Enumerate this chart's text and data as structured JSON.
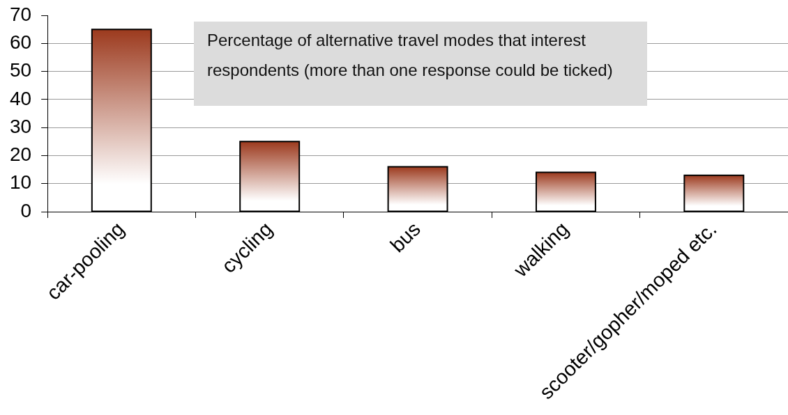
{
  "chart_data": {
    "type": "bar",
    "categories": [
      "car-pooling",
      "cycling",
      "bus",
      "walking",
      "scooter/gopher/moped etc."
    ],
    "values": [
      65,
      25,
      16,
      14,
      13
    ],
    "color": "#9c3a1e",
    "ylim": [
      0,
      70
    ],
    "yticks": [
      0,
      10,
      20,
      30,
      40,
      50,
      60,
      70
    ],
    "grid": "y",
    "annotations": [
      "Percentage of alternative travel modes that interest respondents (more than one response could be ticked)"
    ]
  }
}
